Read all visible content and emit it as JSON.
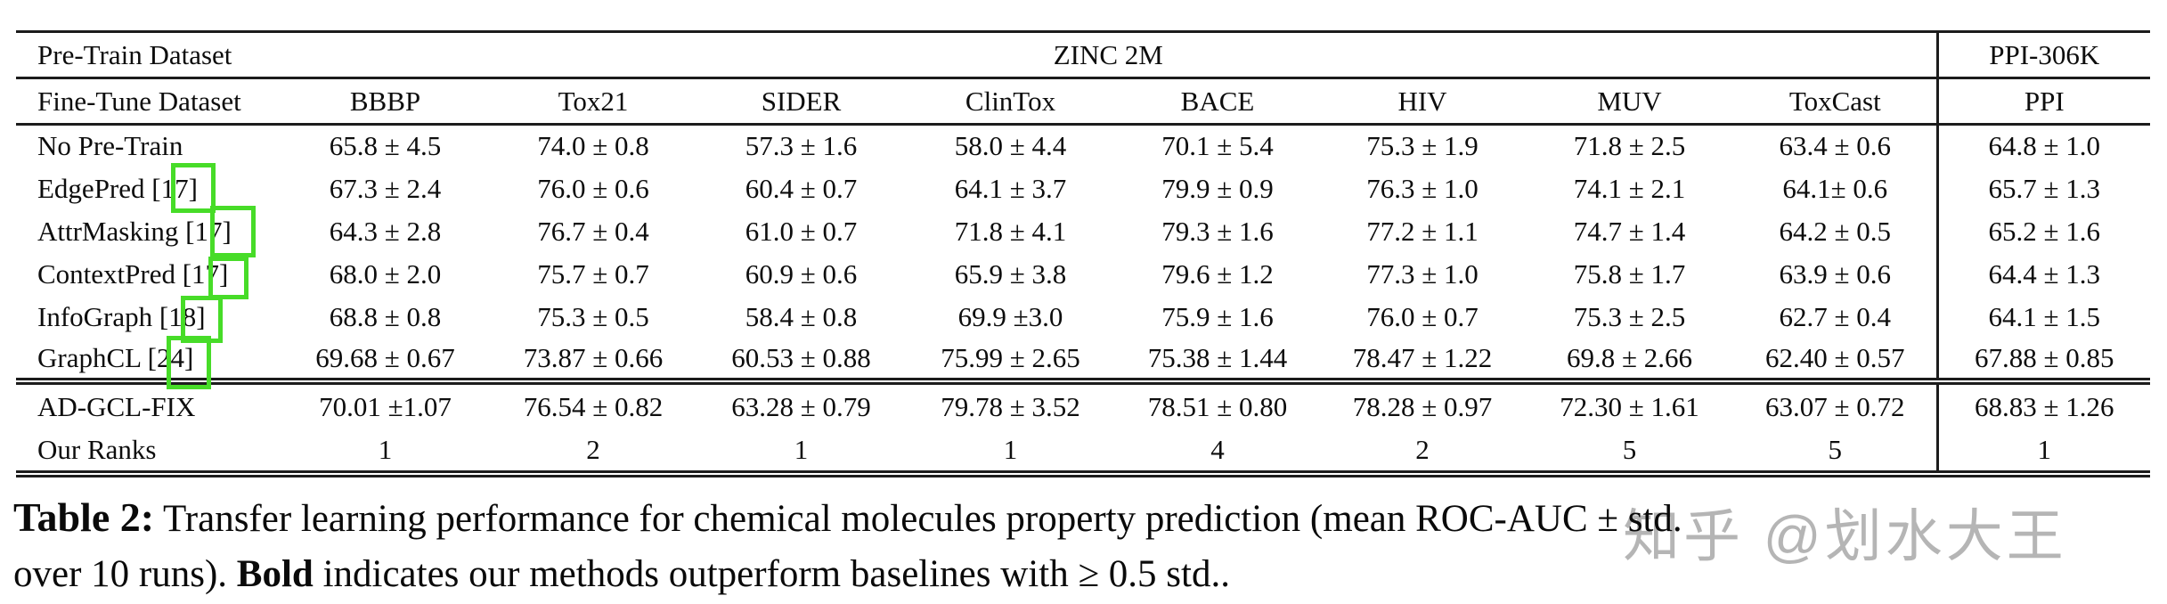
{
  "table": {
    "pretrain_header": "Pre-Train Dataset",
    "pretrain_value": "ZINC 2M",
    "ppi_group_header": "PPI-306K",
    "finetune_header": "Fine-Tune Dataset",
    "columns": [
      "BBBP",
      "Tox21",
      "SIDER",
      "ClinTox",
      "BACE",
      "HIV",
      "MUV",
      "ToxCast",
      "PPI"
    ],
    "rows": [
      {
        "label": "No Pre-Train",
        "values": [
          "65.8 ± 4.5",
          "74.0 ± 0.8",
          "57.3 ± 1.6",
          "58.0 ± 4.4",
          "70.1 ± 5.4",
          "75.3 ± 1.9",
          "71.8 ± 2.5",
          "63.4 ± 0.6",
          "64.8 ± 1.0"
        ]
      },
      {
        "label": "EdgePred [17]",
        "values": [
          "67.3 ± 2.4",
          "76.0 ± 0.6",
          "60.4 ± 0.7",
          "64.1 ± 3.7",
          "79.9 ± 0.9",
          "76.3 ± 1.0",
          "74.1 ± 2.1",
          "64.1± 0.6",
          "65.7 ± 1.3"
        ]
      },
      {
        "label": "AttrMasking [17]",
        "values": [
          "64.3 ± 2.8",
          "76.7 ± 0.4",
          "61.0 ± 0.7",
          "71.8 ± 4.1",
          "79.3 ± 1.6",
          "77.2 ± 1.1",
          "74.7 ± 1.4",
          "64.2 ± 0.5",
          "65.2 ± 1.6"
        ]
      },
      {
        "label": "ContextPred [17]",
        "values": [
          "68.0 ± 2.0",
          "75.7 ± 0.7",
          "60.9 ± 0.6",
          "65.9 ± 3.8",
          "79.6 ± 1.2",
          "77.3 ± 1.0",
          "75.8 ± 1.7",
          "63.9 ± 0.6",
          "64.4 ± 1.3"
        ]
      },
      {
        "label": "InfoGraph [18]",
        "values": [
          "68.8 ± 0.8",
          "75.3 ± 0.5",
          "58.4 ± 0.8",
          "69.9 ±3.0",
          "75.9 ± 1.6",
          "76.0 ± 0.7",
          "75.3 ± 2.5",
          "62.7 ± 0.4",
          "64.1 ± 1.5"
        ]
      },
      {
        "label": "GraphCL [24]",
        "values": [
          "69.68 ± 0.67",
          "73.87 ± 0.66",
          "60.53 ± 0.88",
          "75.99 ± 2.65",
          "75.38 ± 1.44",
          "78.47 ± 1.22",
          "69.8 ± 2.66",
          "62.40 ± 0.57",
          "67.88 ± 0.85"
        ]
      }
    ],
    "ours_row": {
      "label": "AD-GCL-FIX",
      "values": [
        "70.01 ±1.07",
        "76.54 ± 0.82",
        "63.28 ± 0.79",
        "79.78 ± 3.52",
        "78.51 ± 0.80",
        "78.28 ± 0.97",
        "72.30 ± 1.61",
        "63.07 ± 0.72",
        "68.83 ± 1.26"
      ],
      "bold_columns": [
        "SIDER",
        "ClinTox",
        "PPI"
      ]
    },
    "ranks_row": {
      "label": "Our Ranks",
      "values": [
        "1",
        "2",
        "1",
        "1",
        "4",
        "2",
        "5",
        "5",
        "1"
      ]
    }
  },
  "caption": {
    "label": "Table 2:",
    "line1_rest": " Transfer learning performance for chemical molecules property prediction (mean ROC-AUC ± std.",
    "line2_pre": "over 10 runs). ",
    "line2_bold": "Bold",
    "line2_rest": " indicates our methods outperform baselines with ≥ 0.5 std.."
  },
  "watermark": {
    "text": "知乎 @划水大王",
    "color": "#b5b5b5"
  },
  "annotations": {
    "box_color": "#47dc28",
    "boxes": [
      "EdgePred citation [17]",
      "AttrMasking citation [17]",
      "ContextPred citation [17]",
      "InfoGraph citation [18]",
      "GraphCL citation [24]"
    ]
  }
}
